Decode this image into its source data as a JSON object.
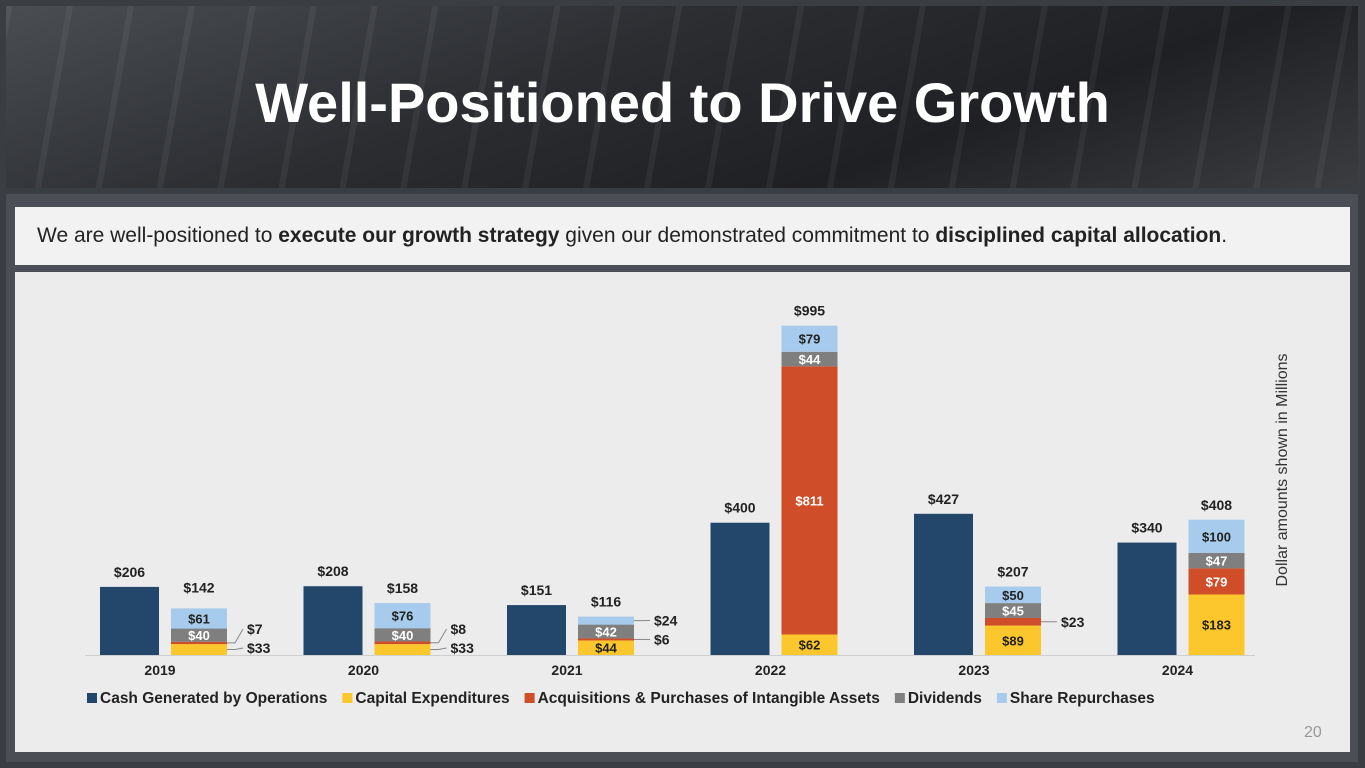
{
  "title": "Well-Positioned to Drive Growth",
  "subtitle": {
    "pre": "We are well-positioned to ",
    "b1": "execute our growth strategy",
    "mid": " given our demonstrated commitment to ",
    "b2": "disciplined capital allocation",
    "post": "."
  },
  "page_number": "20",
  "chart_data": {
    "type": "bar",
    "stacked": true,
    "categories": [
      "2019",
      "2020",
      "2021",
      "2022",
      "2023",
      "2024"
    ],
    "ylabel": "Dollar amounts shown in Millions",
    "ylim": [
      0,
      1000
    ],
    "grid": false,
    "legend_position": "bottom",
    "cash": {
      "name": "Cash Generated by Operations",
      "color": "#23466b",
      "values": [
        206,
        208,
        151,
        400,
        427,
        340
      ],
      "labels": [
        "$206",
        "$208",
        "$151",
        "$400",
        "$427",
        "$340"
      ]
    },
    "stack_series": [
      {
        "name": "Capital Expenditures",
        "color": "#fcc72c",
        "values": [
          33,
          33,
          44,
          62,
          89,
          183
        ],
        "labels": [
          "$33",
          "$33",
          "$44",
          "$62",
          "$89",
          "$183"
        ]
      },
      {
        "name": "Acquisitions & Purchases of Intangible Assets",
        "color": "#cf4d28",
        "values": [
          7,
          8,
          6,
          811,
          23,
          79
        ],
        "labels": [
          "$7",
          "$8",
          "$6",
          "$811",
          "$23",
          "$79"
        ]
      },
      {
        "name": "Dividends",
        "color": "#7f7f7f",
        "values": [
          40,
          40,
          42,
          44,
          45,
          47
        ],
        "labels": [
          "$40",
          "$40",
          "$42",
          "$44",
          "$45",
          "$47"
        ]
      },
      {
        "name": "Share Repurchases",
        "color": "#a6cbec",
        "values": [
          61,
          76,
          24,
          79,
          50,
          100
        ],
        "labels": [
          "$61",
          "$76",
          "$24",
          "$79",
          "$50",
          "$100"
        ]
      }
    ],
    "stack_totals": [
      "$142",
      "$158",
      "$116",
      "$995",
      "$207",
      "$408"
    ]
  }
}
